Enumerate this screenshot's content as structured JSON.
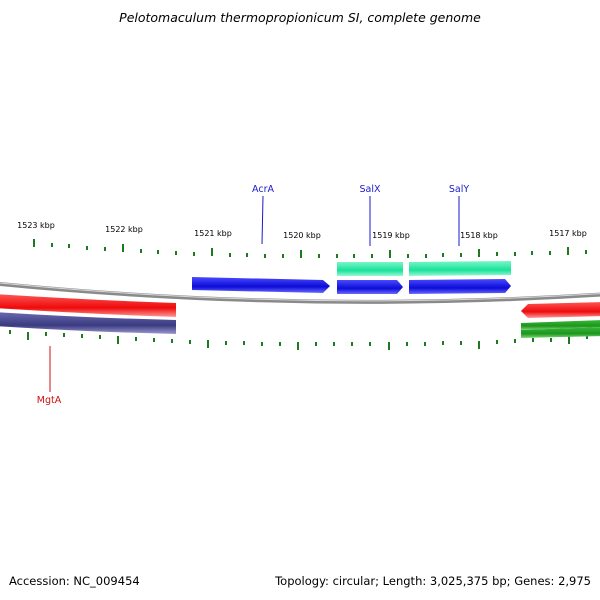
{
  "title": "Pelotomaculum thermopropionicum SI, complete genome",
  "accession": "Accession: NC_009454",
  "summary": "Topology: circular; Length: 3,025,375 bp; Genes: 2,975",
  "colors": {
    "backbone": "#8a8a8a",
    "ticks": "#1f7a1f",
    "forward_gene": "#1010e0",
    "forward_gene_alt": "#20e6a0",
    "reverse_gene": "#ee1111",
    "reverse_gene_alt": "#40408a",
    "reverse_gene_green": "#22a022",
    "label_blue": "#1a1acc",
    "label_red": "#cc1111"
  },
  "scale_labels": [
    "1523 kbp",
    "1522 kbp",
    "1521 kbp",
    "1520 kbp",
    "1519 kbp",
    "1518 kbp",
    "1517 kbp"
  ],
  "gene_labels": [
    {
      "id": "acra",
      "text": "AcrA",
      "color": "#1a1acc"
    },
    {
      "id": "salx",
      "text": "SalX",
      "color": "#1a1acc"
    },
    {
      "id": "saly",
      "text": "SalY",
      "color": "#1a1acc"
    },
    {
      "id": "mgta",
      "text": "MgtA",
      "color": "#cc1111"
    }
  ]
}
